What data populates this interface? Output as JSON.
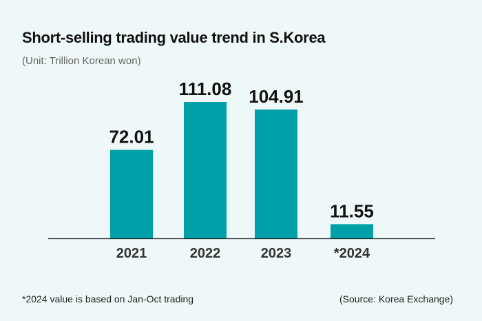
{
  "header": {
    "title": "Short-selling trading value trend in S.Korea",
    "subtitle": "(Unit: Trillion Korean won)"
  },
  "footer": {
    "note": "*2024 value is based on Jan-Oct trading",
    "source": "(Source: Korea Exchange)"
  },
  "colors": {
    "bar": "#00a0a8",
    "axis": "#222222",
    "label": "#111111",
    "background": "#eef8f8"
  },
  "chart_data": {
    "type": "bar",
    "categories": [
      "2021",
      "2022",
      "2023",
      "*2024"
    ],
    "values": [
      72.01,
      111.08,
      104.91,
      11.55
    ],
    "value_labels": [
      "72.01",
      "111.08",
      "104.91",
      "11.55"
    ],
    "title": "Short-selling trading value trend in S.Korea",
    "subtitle": "(Unit: Trillion Korean won)",
    "ylim": [
      0,
      111.08
    ],
    "grid": false,
    "legend": "none"
  }
}
